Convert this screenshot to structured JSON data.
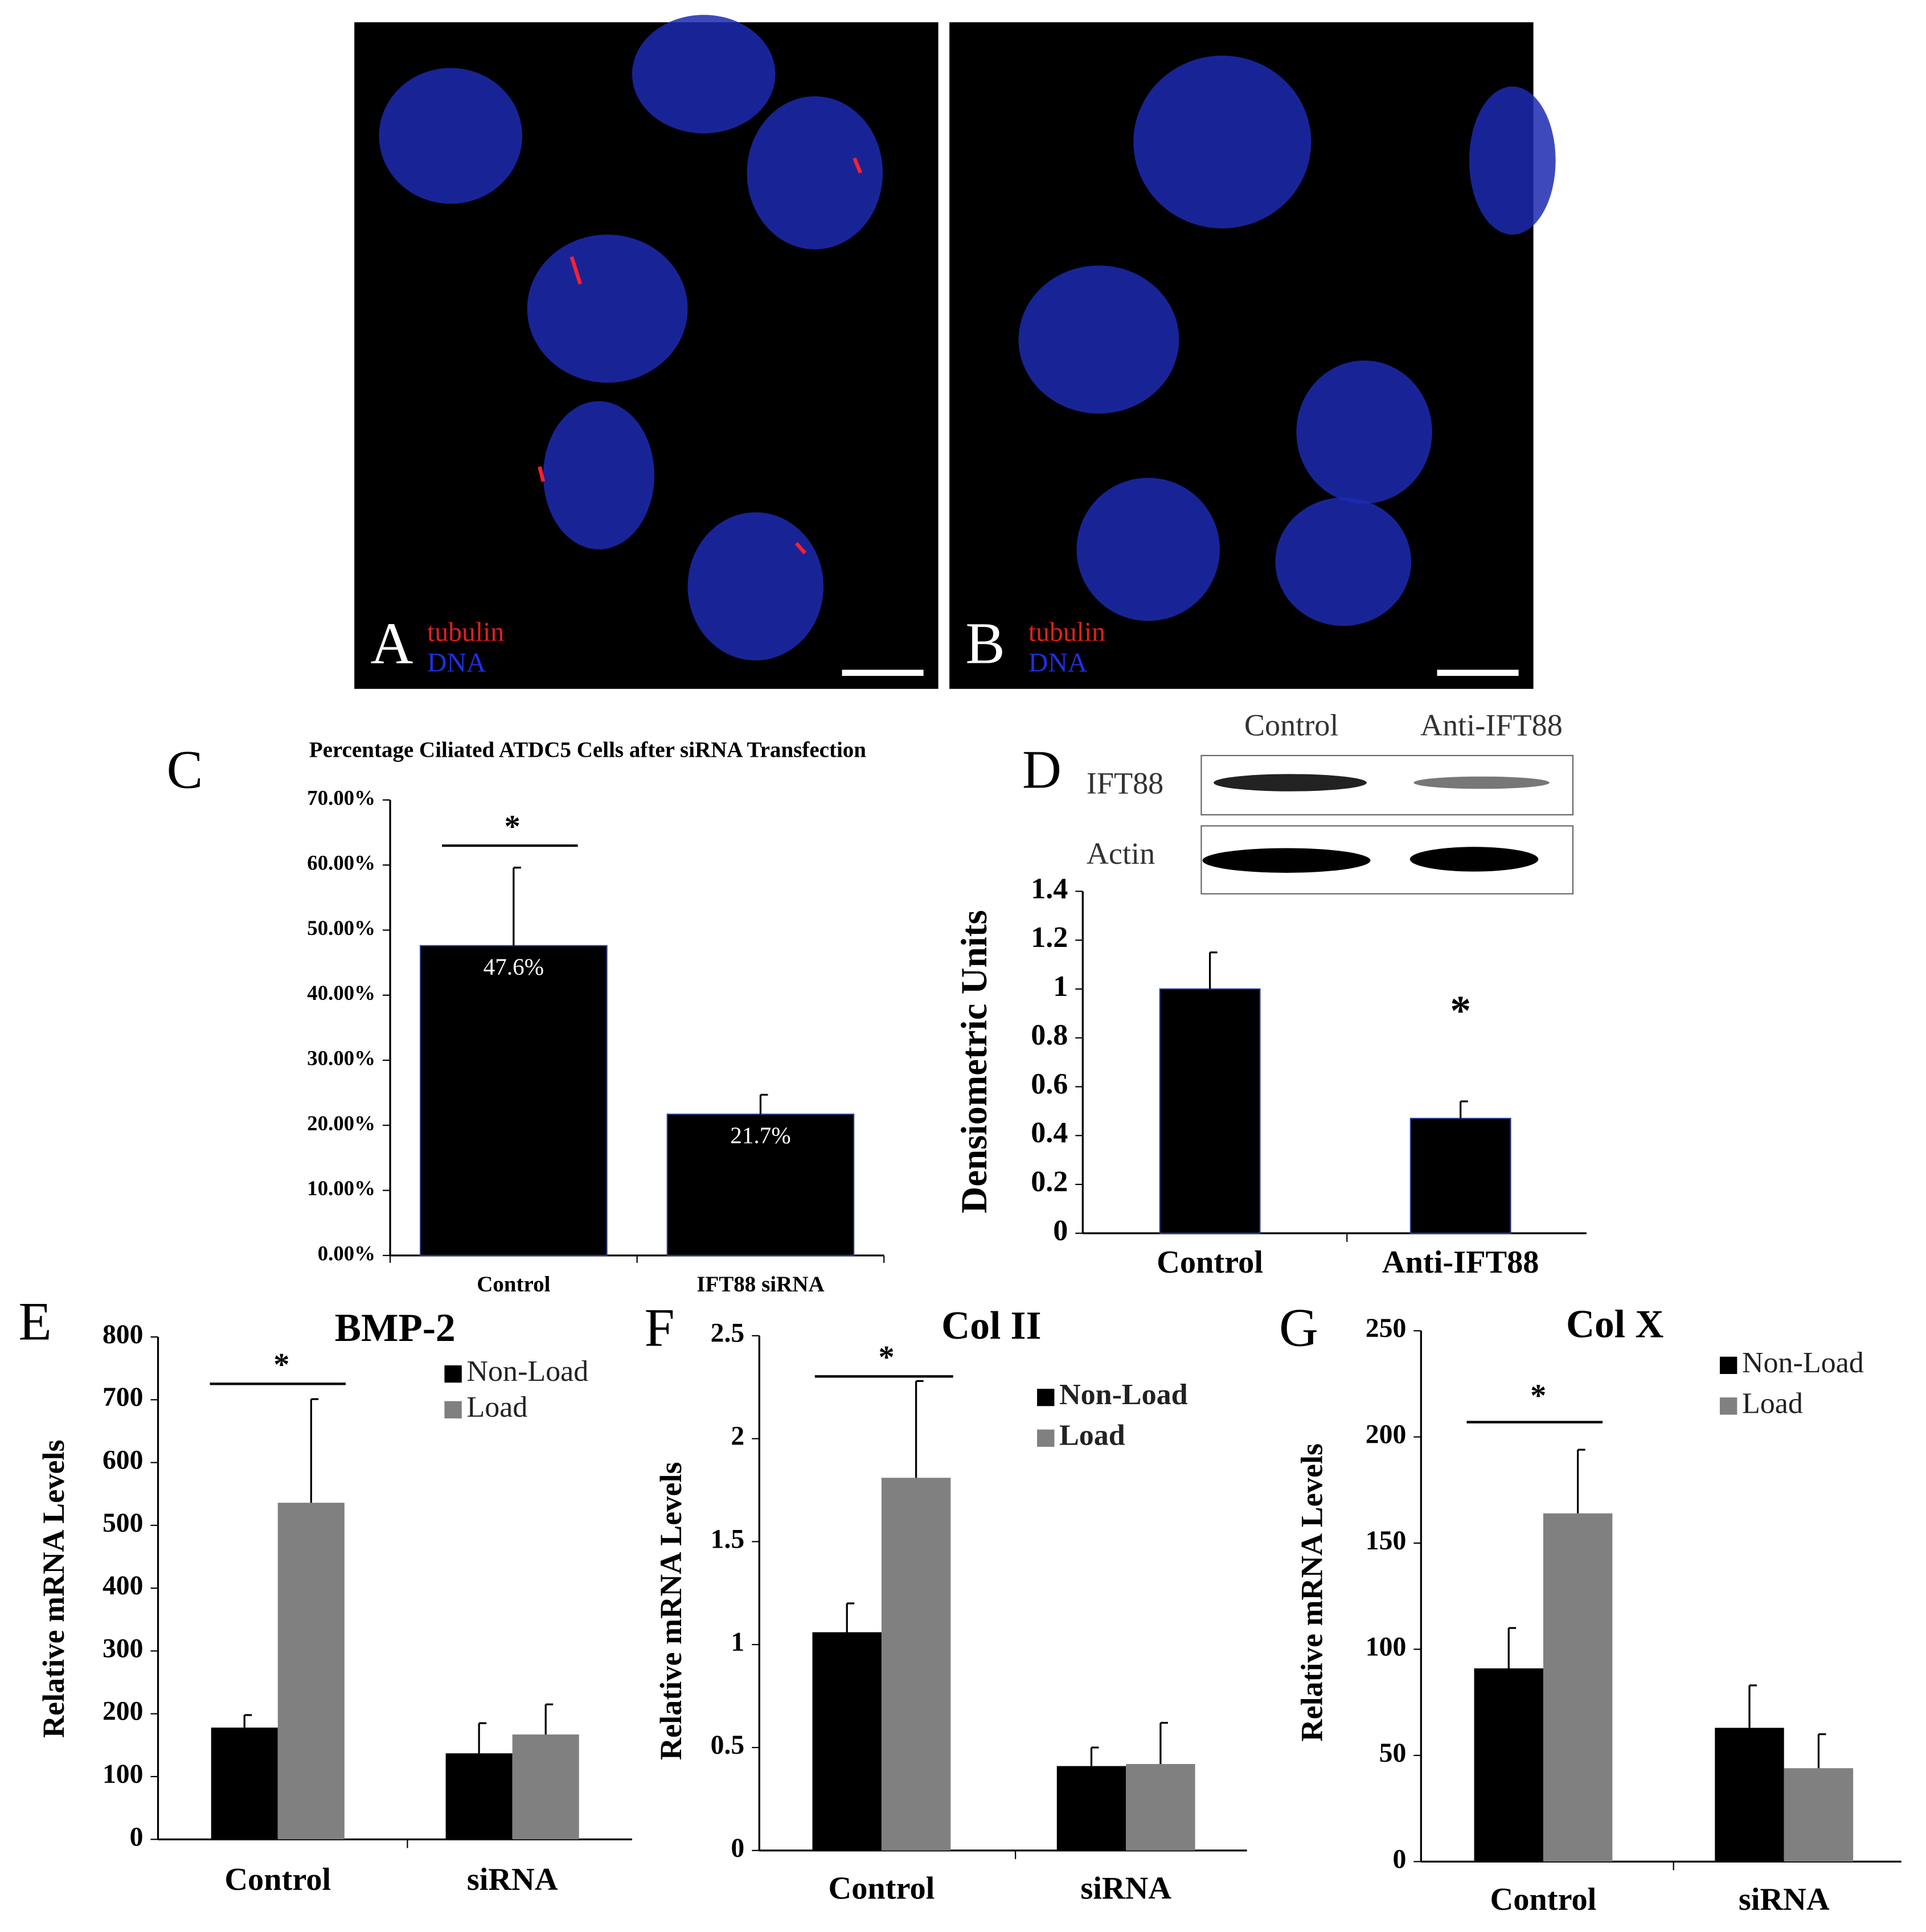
{
  "images": [
    {
      "letter": "A",
      "labels": [
        "tubulin",
        "DNA"
      ]
    },
    {
      "letter": "B",
      "labels": [
        "tubulin",
        "DNA"
      ]
    }
  ],
  "blot": {
    "columns": [
      "Control",
      "Anti-IFT88"
    ],
    "rows": [
      "IFT88",
      "Actin"
    ]
  },
  "chart_data": [
    {
      "type": "bar",
      "letter": "C",
      "title": "Percentage Ciliated ATDC5 Cells after siRNA Transfection",
      "categories": [
        "Control",
        "IFT88 siRNA"
      ],
      "values": [
        47.6,
        21.7
      ],
      "value_labels": [
        "47.6%",
        "21.7%"
      ],
      "errors": [
        12,
        3
      ],
      "color": "#000000",
      "annotation": "*",
      "ylim": [
        0,
        70
      ],
      "yticks": [
        {
          "value": 0,
          "label": "0.00%"
        },
        {
          "value": 10,
          "label": "10.00%"
        },
        {
          "value": 20,
          "label": "20.00%"
        },
        {
          "value": 30,
          "label": "30.00%"
        },
        {
          "value": 40,
          "label": "40.00%"
        },
        {
          "value": 50,
          "label": "50.00%"
        },
        {
          "value": 60,
          "label": "60.00%"
        },
        {
          "value": 70,
          "label": "70.00%"
        }
      ]
    },
    {
      "type": "bar",
      "letter": "D",
      "y_label": "Densiometric Units",
      "categories": [
        "Control",
        "Anti-IFT88"
      ],
      "values": [
        1,
        0.47
      ],
      "errors": [
        0.15,
        0.07
      ],
      "color": "#000000",
      "annotation": "*",
      "ylim": [
        0,
        1.4
      ],
      "yticks": [
        0,
        0.2,
        0.4,
        0.6,
        0.8,
        1,
        1.2,
        1.4
      ]
    },
    {
      "type": "bar",
      "letter": "E",
      "title": "BMP-2",
      "y_label": "Relative mRNA Levels",
      "annotation": "*",
      "categories": [
        "Control",
        "siRNA"
      ],
      "series": [
        {
          "name": "Non-Load",
          "color": "#000000",
          "values": [
            178,
            137
          ],
          "errors": [
            20,
            48
          ]
        },
        {
          "name": "Load",
          "color": "#808080",
          "values": [
            536,
            167
          ],
          "errors": [
            165,
            48
          ]
        }
      ],
      "ylim": [
        0,
        800
      ],
      "yticks": [
        0,
        100,
        200,
        300,
        400,
        500,
        600,
        700,
        800
      ]
    },
    {
      "type": "bar",
      "letter": "F",
      "title": "Col II",
      "y_label": "Relative mRNA Levels",
      "annotation": "*",
      "categories": [
        "Control",
        "siRNA"
      ],
      "series": [
        {
          "name": "Non-Load",
          "color": "#000000",
          "values": [
            1.06,
            0.41
          ],
          "errors": [
            0.14,
            0.09
          ]
        },
        {
          "name": "Load",
          "color": "#808080",
          "values": [
            1.81,
            0.42
          ],
          "errors": [
            0.47,
            0.2
          ]
        }
      ],
      "ylim": [
        0,
        2.5
      ],
      "yticks": [
        0,
        0.5,
        1,
        1.5,
        2,
        2.5
      ]
    },
    {
      "type": "bar",
      "letter": "G",
      "title": "Col X",
      "y_label": "Relative mRNA Levels",
      "annotation": "*",
      "categories": [
        "Control",
        "siRNA"
      ],
      "series": [
        {
          "name": "Non-Load",
          "color": "#000000",
          "values": [
            91,
            63
          ],
          "errors": [
            19,
            20
          ]
        },
        {
          "name": "Load",
          "color": "#808080",
          "values": [
            164,
            44
          ],
          "errors": [
            30,
            16
          ]
        }
      ],
      "ylim": [
        0,
        250
      ],
      "yticks": [
        0,
        50,
        100,
        150,
        200,
        250
      ]
    }
  ]
}
